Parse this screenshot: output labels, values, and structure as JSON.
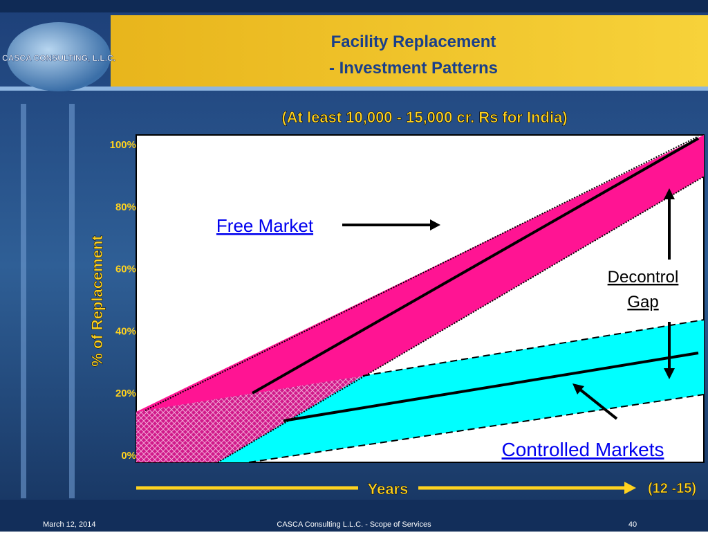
{
  "logo": {
    "text": "CASCA CONSULTING, L.L.C."
  },
  "header": {
    "title_lines": [
      "Facility Replacement",
      "- Investment Patterns"
    ]
  },
  "subtitle": "(At least 10,000 - 15,000 cr. Rs for India)",
  "figure": {
    "y_axis_label": "% of Replacement",
    "y_tick_labels": [
      "100%",
      "80%",
      "60%",
      "40%",
      "20%",
      "0%"
    ],
    "annotations": {
      "free_market": "Free Market",
      "decontrol_gap": [
        "Decontrol",
        "Gap"
      ],
      "controlled_markets": "Controlled Markets"
    },
    "x_axis_label": "Years",
    "x_axis_end": "(12 -15)"
  },
  "footer": {
    "date": "March 12, 2014",
    "center": "CASCA Consulting L.L.C. - Scope of Services",
    "page": "40"
  }
}
